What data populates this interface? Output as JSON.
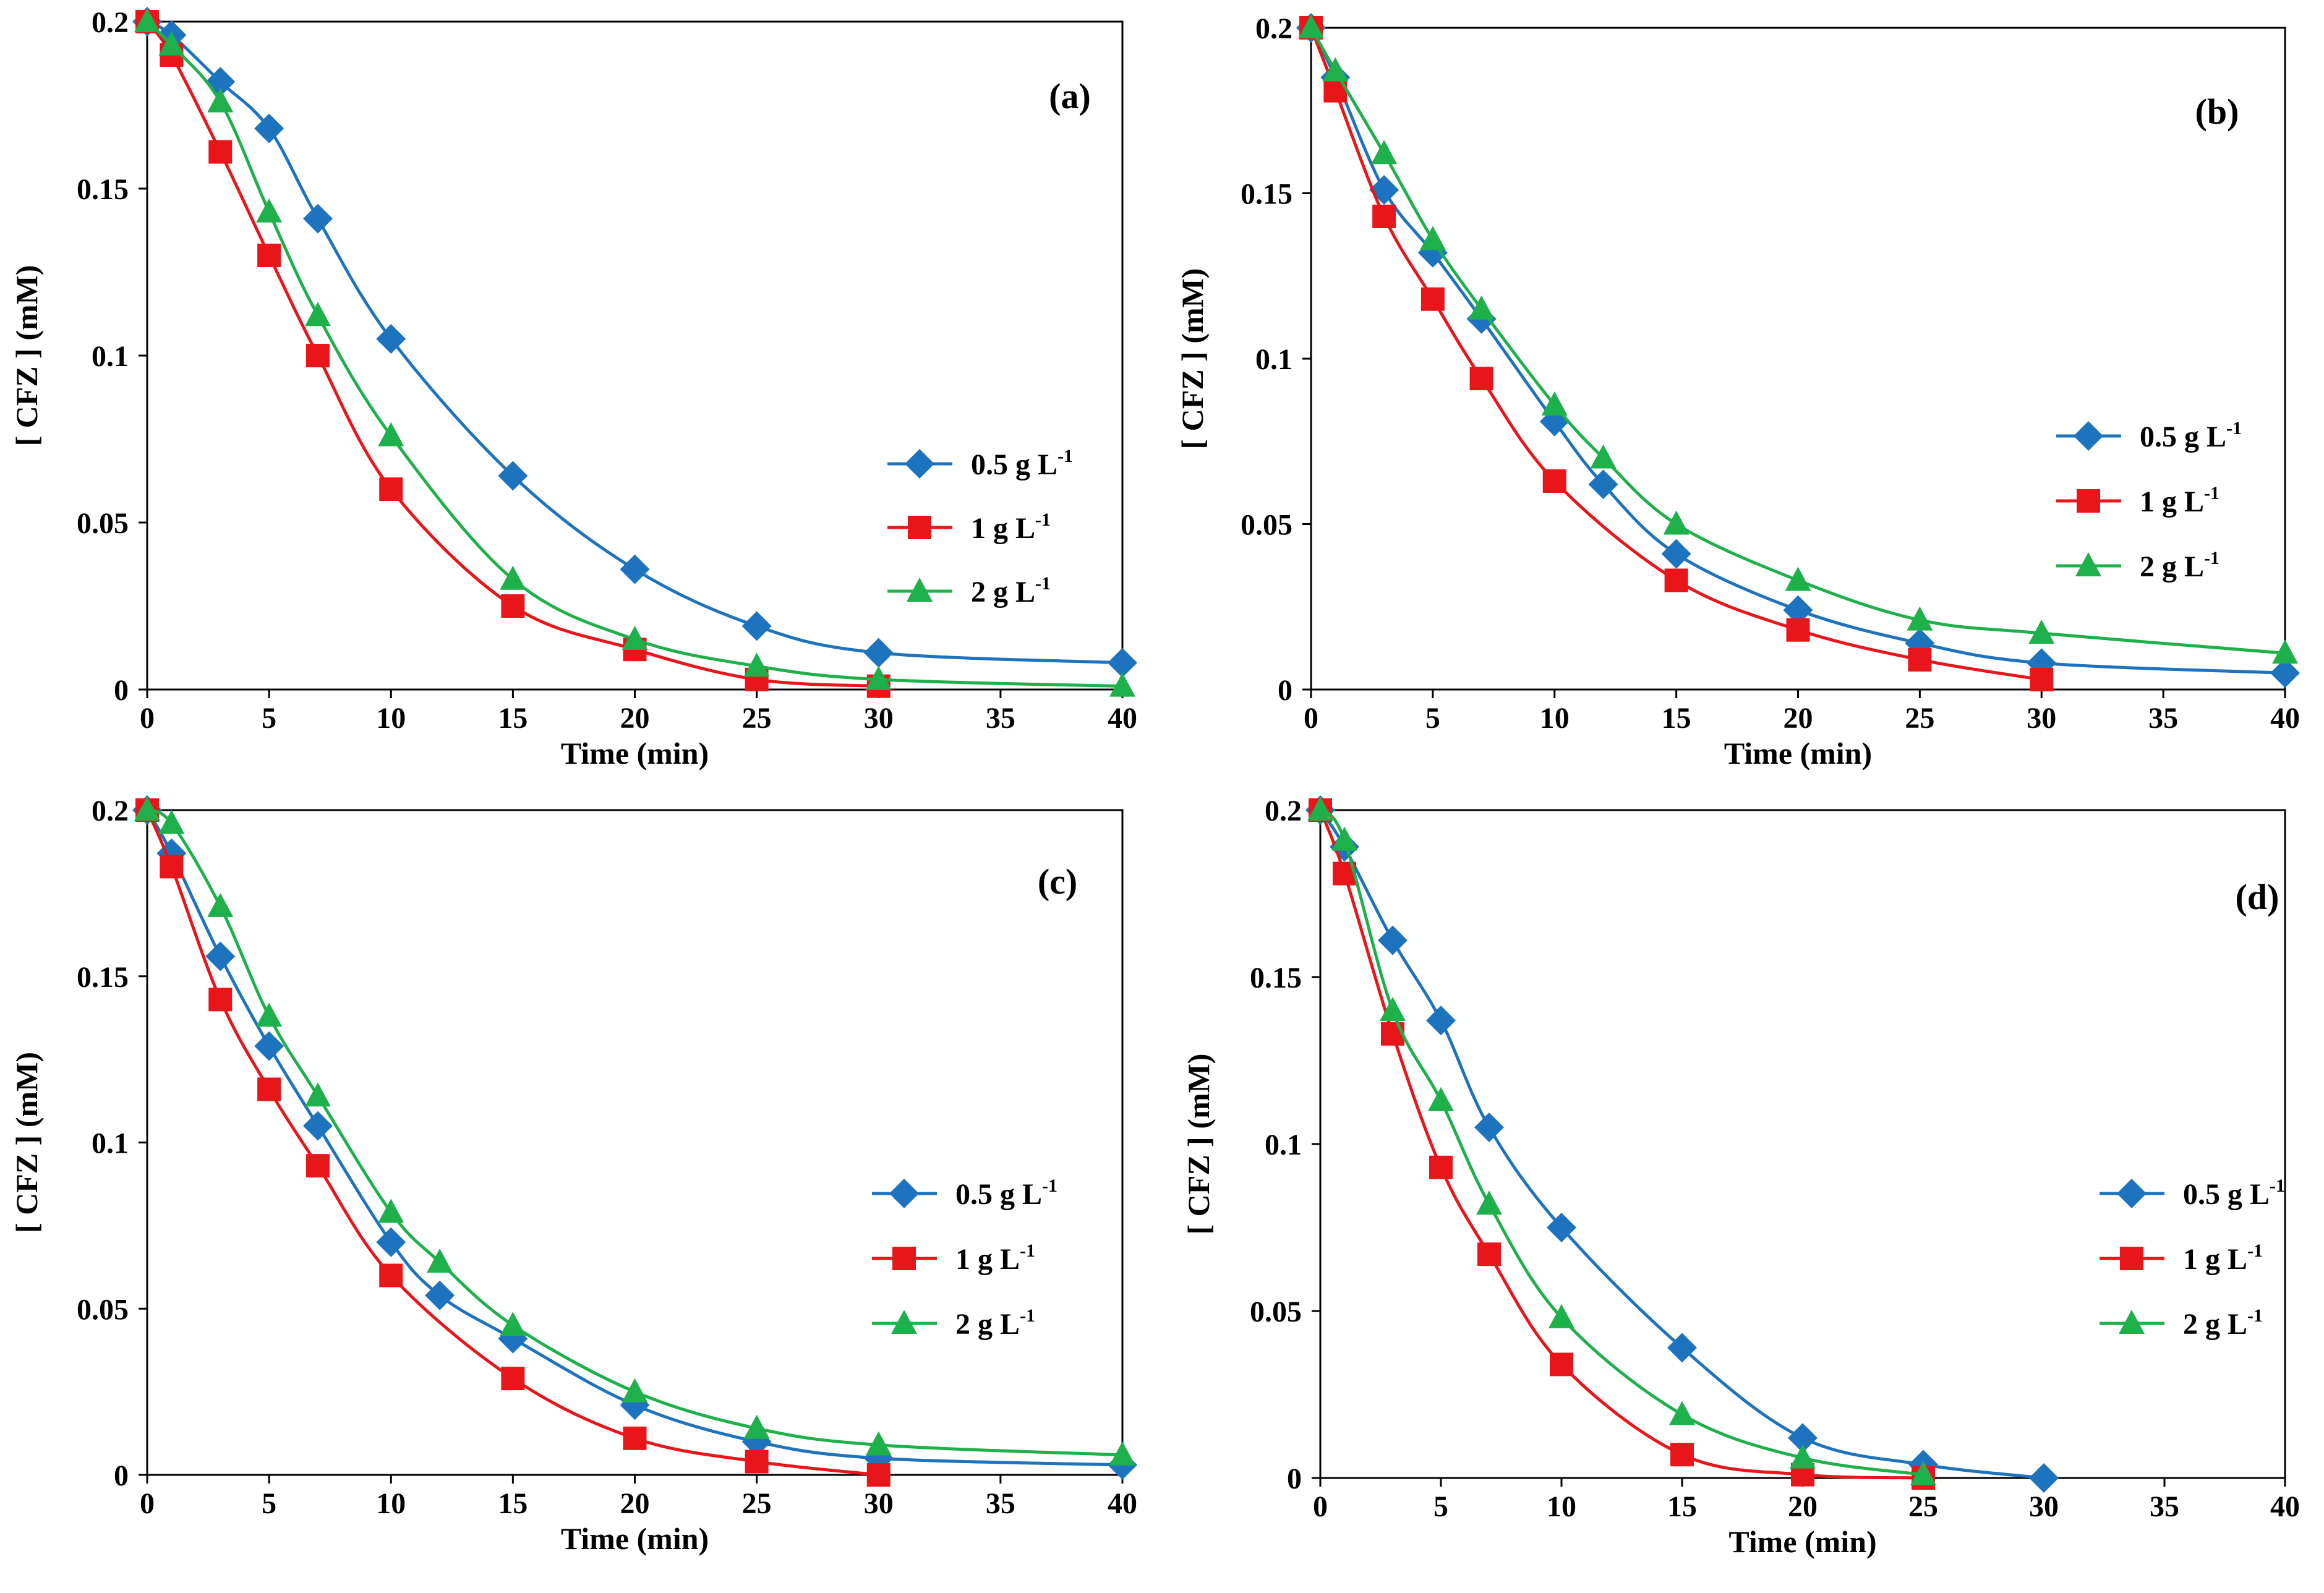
{
  "figure": {
    "colors": {
      "s05": "#1E73BE",
      "s1": "#E8161B",
      "s2": "#1EB04B"
    },
    "legend_entries": [
      {
        "series": "s05",
        "label": "0.5 g L",
        "sup": "-1",
        "marker": "diamond"
      },
      {
        "series": "s1",
        "label": "1 g L",
        "sup": "-1",
        "marker": "square"
      },
      {
        "series": "s2",
        "label": "2 g L",
        "sup": "-1",
        "marker": "triangle"
      }
    ]
  },
  "chart_data": [
    {
      "panel": "a",
      "type": "line",
      "panel_label": "(a)",
      "xlabel": "Time (min)",
      "ylabel": "[ CFZ ] (mM)",
      "xlim": [
        0,
        40
      ],
      "ylim": [
        0,
        0.2
      ],
      "xticks": [
        0,
        5,
        10,
        15,
        20,
        25,
        30,
        35,
        40
      ],
      "xtick_labels": [
        "0",
        "5",
        "10",
        "15",
        "20",
        "25",
        "30",
        "35",
        "40"
      ],
      "yticks": [
        0,
        0.05,
        0.1,
        0.15,
        0.2
      ],
      "ytick_labels": [
        "0",
        "0.05",
        "0.1",
        "0.15",
        "0.2"
      ],
      "legend_position": "middle-right",
      "series": [
        {
          "name": "0.5 g L-1",
          "key": "s05",
          "x": [
            0,
            1,
            3,
            5,
            7,
            10,
            15,
            20,
            25,
            30,
            40
          ],
          "y": [
            0.2,
            0.196,
            0.182,
            0.168,
            0.141,
            0.105,
            0.064,
            0.036,
            0.019,
            0.011,
            0.008
          ]
        },
        {
          "name": "1 g L-1",
          "key": "s1",
          "x": [
            0,
            1,
            3,
            5,
            7,
            10,
            15,
            20,
            25,
            30
          ],
          "y": [
            0.2,
            0.19,
            0.161,
            0.13,
            0.1,
            0.06,
            0.025,
            0.012,
            0.003,
            0.001
          ]
        },
        {
          "name": "2 g L-1",
          "key": "s2",
          "x": [
            0,
            1,
            3,
            5,
            7,
            10,
            15,
            20,
            25,
            30,
            40
          ],
          "y": [
            0.2,
            0.193,
            0.176,
            0.143,
            0.112,
            0.076,
            0.033,
            0.015,
            0.007,
            0.003,
            0.001
          ]
        }
      ]
    },
    {
      "panel": "b",
      "type": "line",
      "panel_label": "(b)",
      "xlabel": "Time (min)",
      "ylabel": "[ CFZ ] (mM)",
      "xlim": [
        0,
        40
      ],
      "ylim": [
        0,
        0.2
      ],
      "xticks": [
        0,
        5,
        10,
        15,
        20,
        25,
        30,
        35,
        40
      ],
      "xtick_labels": [
        "0",
        "5",
        "10",
        "15",
        "20",
        "25",
        "30",
        "35",
        "40"
      ],
      "yticks": [
        0,
        0.05,
        0.1,
        0.15,
        0.2
      ],
      "ytick_labels": [
        "0",
        "0.05",
        "0.1",
        "0.15",
        "0.2"
      ],
      "legend_position": "middle-right",
      "series": [
        {
          "name": "0.5 g L-1",
          "key": "s05",
          "x": [
            0,
            1,
            3,
            5,
            7,
            10,
            12,
            15,
            20,
            25,
            30,
            40
          ],
          "y": [
            0.2,
            0.185,
            0.151,
            0.132,
            0.112,
            0.081,
            0.062,
            0.041,
            0.024,
            0.014,
            0.008,
            0.005
          ]
        },
        {
          "name": "1 g L-1",
          "key": "s1",
          "x": [
            0,
            1,
            3,
            5,
            7,
            10,
            15,
            20,
            25,
            30
          ],
          "y": [
            0.2,
            0.181,
            0.143,
            0.118,
            0.094,
            0.063,
            0.033,
            0.018,
            0.009,
            0.003
          ]
        },
        {
          "name": "2 g L-1",
          "key": "s2",
          "x": [
            0,
            1,
            3,
            5,
            7,
            10,
            12,
            15,
            20,
            25,
            30,
            40
          ],
          "y": [
            0.2,
            0.187,
            0.162,
            0.136,
            0.115,
            0.086,
            0.07,
            0.05,
            0.033,
            0.021,
            0.017,
            0.011
          ]
        }
      ]
    },
    {
      "panel": "c",
      "type": "line",
      "panel_label": "(c)",
      "xlabel": "Time (min)",
      "ylabel": "[ CFZ ] (mM)",
      "xlim": [
        0,
        40
      ],
      "ylim": [
        0,
        0.2
      ],
      "xticks": [
        0,
        5,
        10,
        15,
        20,
        25,
        30,
        35,
        40
      ],
      "xtick_labels": [
        "0",
        "5",
        "10",
        "15",
        "20",
        "25",
        "30",
        "35",
        "40"
      ],
      "yticks": [
        0,
        0.05,
        0.1,
        0.15,
        0.2
      ],
      "ytick_labels": [
        "0",
        "0.05",
        "0.1",
        "0.15",
        "0.2"
      ],
      "legend_position": "middle-right",
      "series": [
        {
          "name": "0.5 g L-1",
          "key": "s05",
          "x": [
            0,
            1,
            3,
            5,
            7,
            10,
            12,
            15,
            20,
            25,
            30,
            40
          ],
          "y": [
            0.2,
            0.187,
            0.156,
            0.129,
            0.105,
            0.07,
            0.054,
            0.041,
            0.021,
            0.01,
            0.005,
            0.003
          ]
        },
        {
          "name": "1 g L-1",
          "key": "s1",
          "x": [
            0,
            1,
            3,
            5,
            7,
            10,
            15,
            20,
            25,
            30
          ],
          "y": [
            0.2,
            0.183,
            0.143,
            0.116,
            0.093,
            0.06,
            0.029,
            0.011,
            0.004,
            0.0
          ]
        },
        {
          "name": "2 g L-1",
          "key": "s2",
          "x": [
            0,
            1,
            3,
            5,
            7,
            10,
            12,
            15,
            20,
            25,
            30,
            40
          ],
          "y": [
            0.2,
            0.196,
            0.171,
            0.138,
            0.114,
            0.079,
            0.064,
            0.045,
            0.025,
            0.014,
            0.009,
            0.006
          ]
        }
      ]
    },
    {
      "panel": "d",
      "type": "line",
      "panel_label": "(d)",
      "xlabel": "Time (min)",
      "ylabel": "[ CFZ ] (mM)",
      "xlim": [
        0,
        40
      ],
      "ylim": [
        0,
        0.2
      ],
      "xticks": [
        0,
        5,
        10,
        15,
        20,
        25,
        30,
        35,
        40
      ],
      "xtick_labels": [
        "0",
        "5",
        "10",
        "15",
        "20",
        "25",
        "30",
        "35",
        "40"
      ],
      "yticks": [
        0,
        0.05,
        0.1,
        0.15,
        0.2
      ],
      "ytick_labels": [
        "0",
        "0.05",
        "0.1",
        "0.15",
        "0.2"
      ],
      "legend_position": "middle-right",
      "series": [
        {
          "name": "0.5 g L-1",
          "key": "s05",
          "x": [
            0,
            1,
            3,
            5,
            7,
            10,
            15,
            20,
            25,
            30
          ],
          "y": [
            0.2,
            0.189,
            0.161,
            0.137,
            0.105,
            0.075,
            0.039,
            0.012,
            0.004,
            0.0
          ]
        },
        {
          "name": "1 g L-1",
          "key": "s1",
          "x": [
            0,
            1,
            3,
            5,
            7,
            10,
            15,
            20,
            25
          ],
          "y": [
            0.2,
            0.181,
            0.133,
            0.093,
            0.067,
            0.034,
            0.007,
            0.001,
            0.0
          ]
        },
        {
          "name": "2 g L-1",
          "key": "s2",
          "x": [
            0,
            1,
            3,
            5,
            7,
            10,
            15,
            20,
            25
          ],
          "y": [
            0.2,
            0.191,
            0.14,
            0.113,
            0.082,
            0.048,
            0.019,
            0.006,
            0.001
          ]
        }
      ]
    }
  ]
}
